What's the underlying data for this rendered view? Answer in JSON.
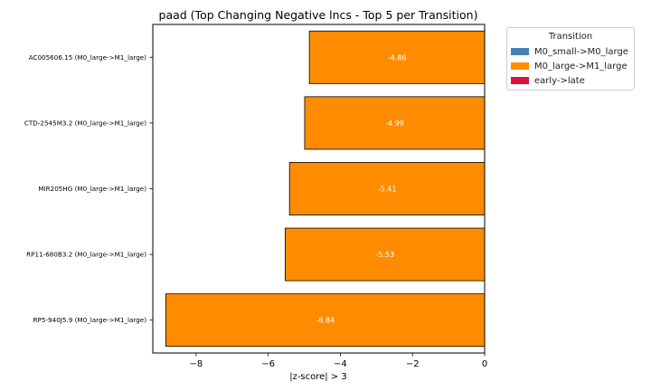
{
  "chart_data": {
    "type": "bar",
    "orientation": "horizontal",
    "title": "paad (Top Changing Negative lncs - Top 5 per Transition)",
    "xlabel": "|z-score| > 3",
    "ylabel": "",
    "xlim": [
      -9.2,
      0
    ],
    "xticks": [
      -8,
      -6,
      -4,
      -2,
      0
    ],
    "xtick_labels": [
      "−8",
      "−6",
      "−4",
      "−2",
      "0"
    ],
    "categories": [
      "AC005606.15 (M0_large->M1_large)",
      "CTD-2545M3.2 (M0_large->M1_large)",
      "MIR205HG (M0_large->M1_large)",
      "RP11-680B3.2 (M0_large->M1_large)",
      "RP5-940J5.9 (M0_large->M1_large)"
    ],
    "values": [
      -4.86,
      -4.99,
      -5.41,
      -5.53,
      -8.84
    ],
    "data_labels": [
      "-4.86",
      "-4.99",
      "-5.41",
      "-5.53",
      "-8.84"
    ],
    "bar_color": "#ff8c00",
    "grid": false,
    "legend": {
      "title": "Transition",
      "placement": "outside-top-right",
      "entries": [
        {
          "label": "M0_small->M0_large",
          "color": "#4682b4"
        },
        {
          "label": "M0_large->M1_large",
          "color": "#ff8c00"
        },
        {
          "label": "early->late",
          "color": "#dc143c"
        }
      ]
    }
  }
}
